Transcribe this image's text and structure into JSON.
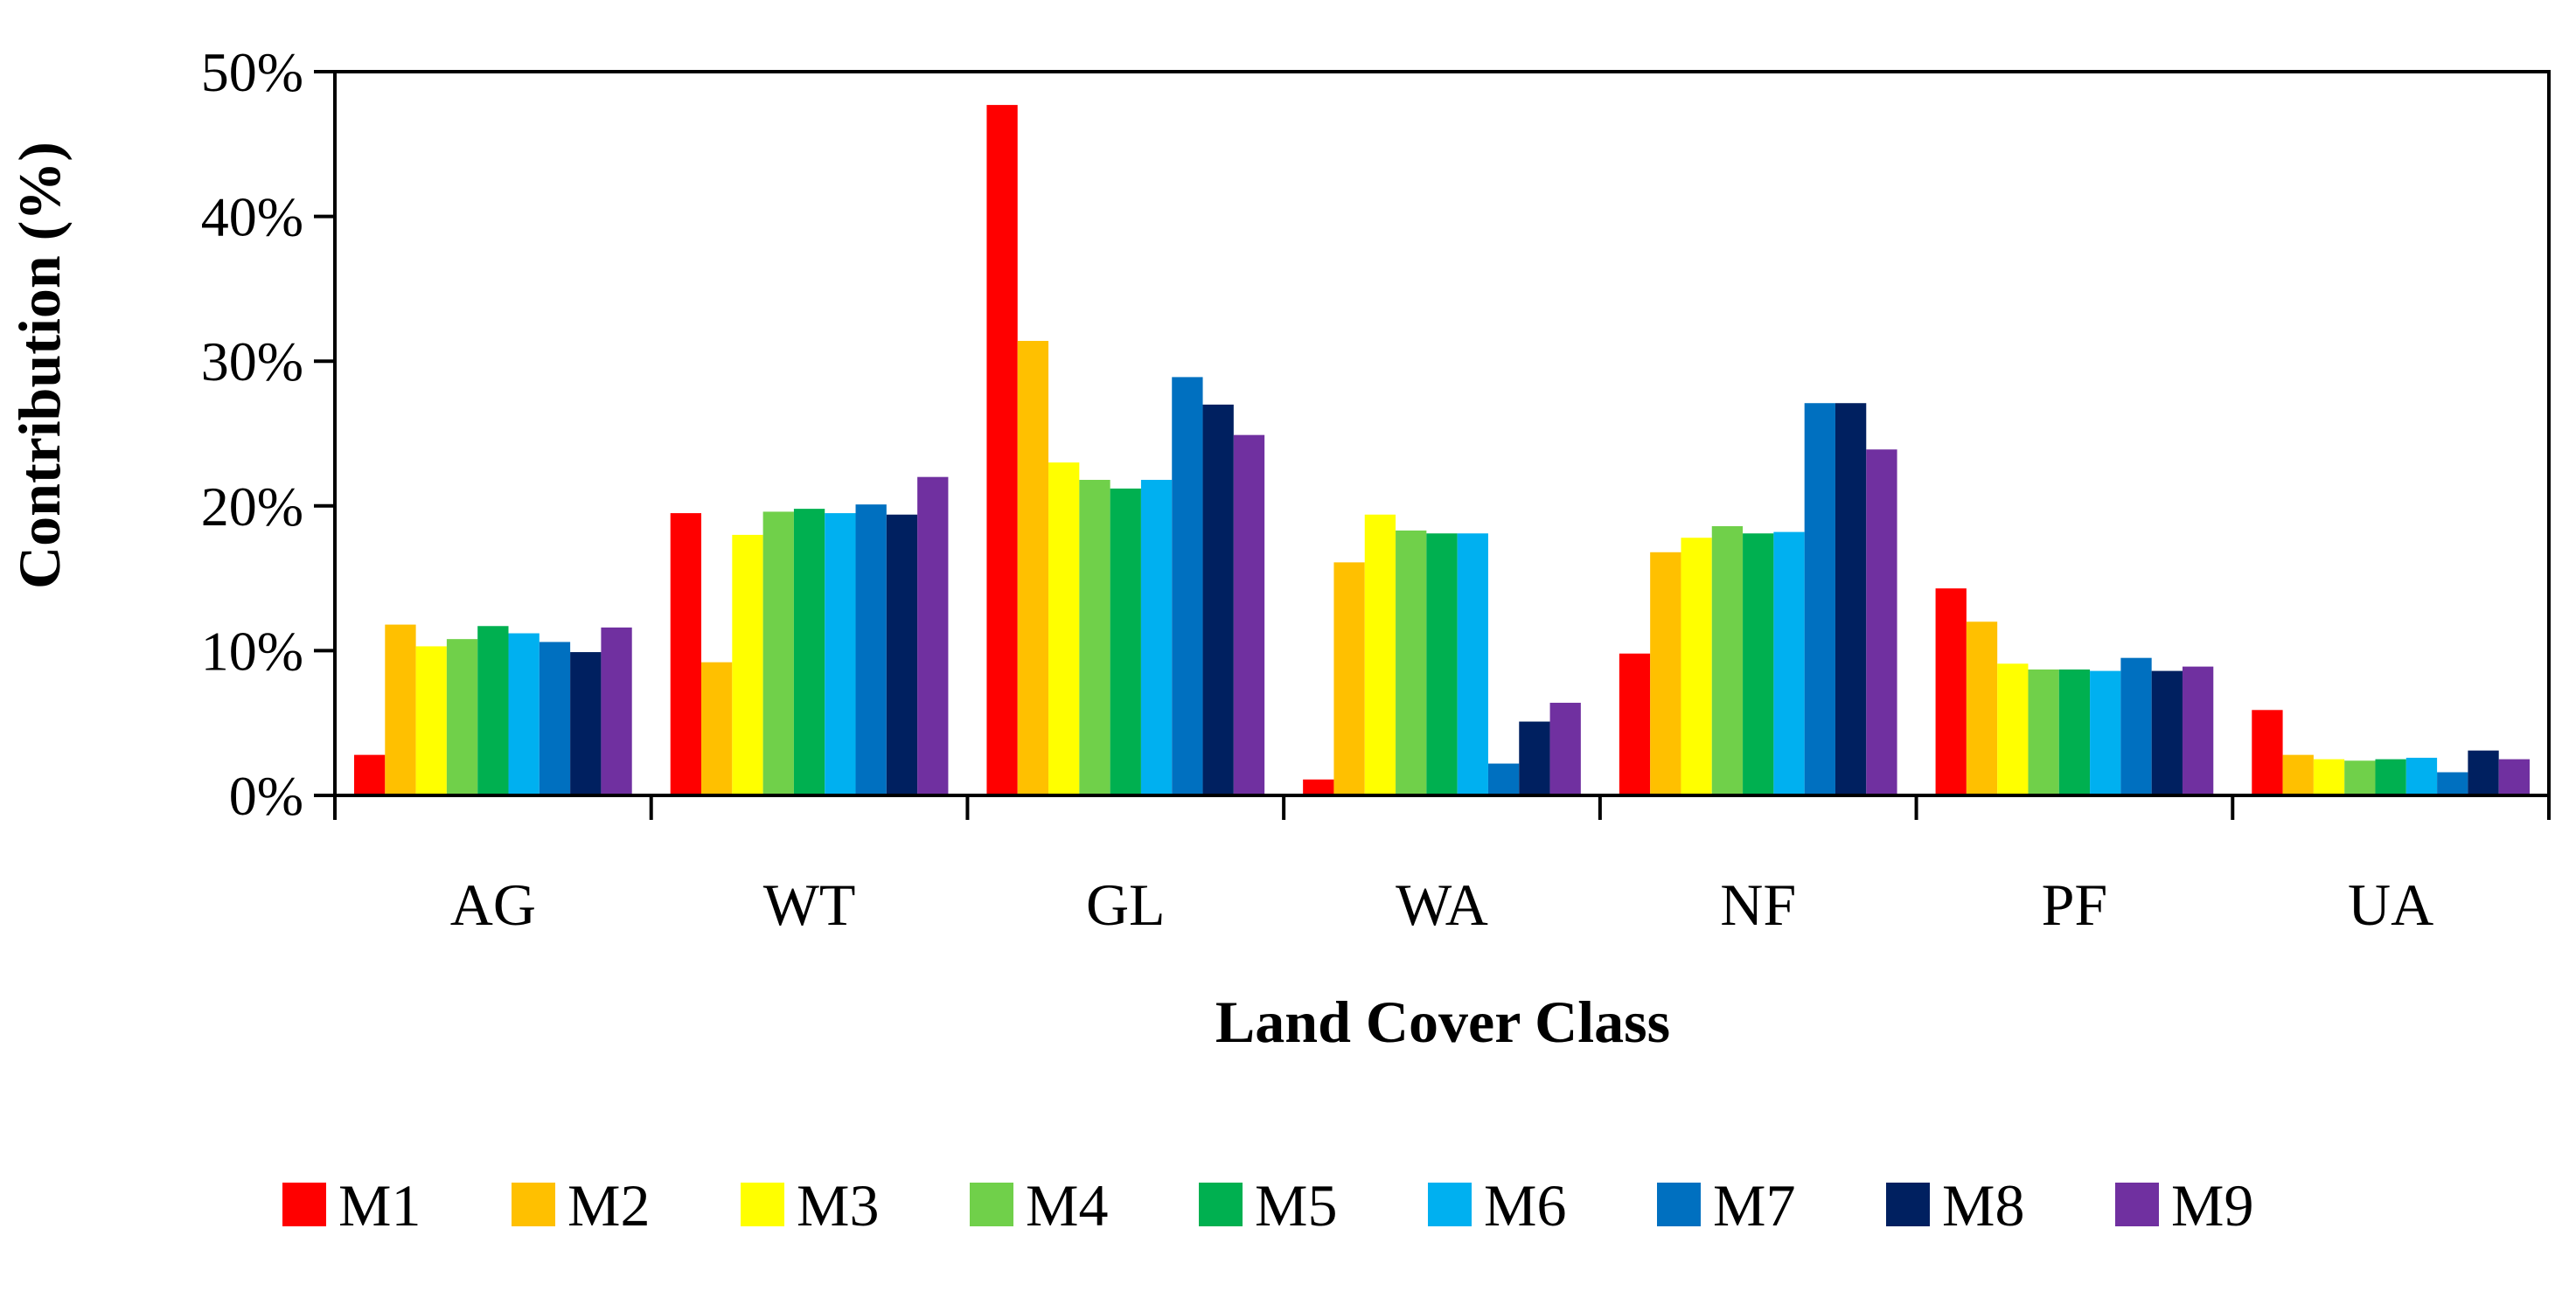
{
  "chart_data": {
    "type": "bar",
    "title": "",
    "xlabel": "Land Cover Class",
    "ylabel": "Contribution (%)",
    "ylim": [
      0,
      50
    ],
    "yticks": [
      0,
      10,
      20,
      30,
      40,
      50
    ],
    "ytick_labels": [
      "0%",
      "10%",
      "20%",
      "30%",
      "40%",
      "50%"
    ],
    "grid": false,
    "legend_position": "bottom",
    "categories": [
      "AG",
      "WT",
      "GL",
      "WA",
      "NF",
      "PF",
      "UA"
    ],
    "series": [
      {
        "name": "M1",
        "color": "#ff0000",
        "values": [
          2.8,
          19.5,
          47.7,
          1.1,
          9.8,
          14.3,
          5.9
        ]
      },
      {
        "name": "M2",
        "color": "#ffc000",
        "values": [
          11.8,
          9.2,
          31.4,
          16.1,
          16.8,
          12.0,
          2.8
        ]
      },
      {
        "name": "M3",
        "color": "#ffff00",
        "values": [
          10.3,
          18.0,
          23.0,
          19.4,
          17.8,
          9.1,
          2.5
        ]
      },
      {
        "name": "M4",
        "color": "#70d04a",
        "values": [
          10.8,
          19.6,
          21.8,
          18.3,
          18.6,
          8.7,
          2.4
        ]
      },
      {
        "name": "M5",
        "color": "#00b050",
        "values": [
          11.7,
          19.8,
          21.2,
          18.1,
          18.1,
          8.7,
          2.5
        ]
      },
      {
        "name": "M6",
        "color": "#00b0f0",
        "values": [
          11.2,
          19.5,
          21.8,
          18.1,
          18.2,
          8.6,
          2.6
        ]
      },
      {
        "name": "M7",
        "color": "#0070c0",
        "values": [
          10.6,
          20.1,
          28.9,
          2.2,
          27.1,
          9.5,
          1.6
        ]
      },
      {
        "name": "M8",
        "color": "#002060",
        "values": [
          9.9,
          19.4,
          27.0,
          5.1,
          27.1,
          8.6,
          3.1
        ]
      },
      {
        "name": "M9",
        "color": "#7030a0",
        "values": [
          11.6,
          22.0,
          24.9,
          6.4,
          23.9,
          8.9,
          2.5
        ]
      }
    ]
  }
}
